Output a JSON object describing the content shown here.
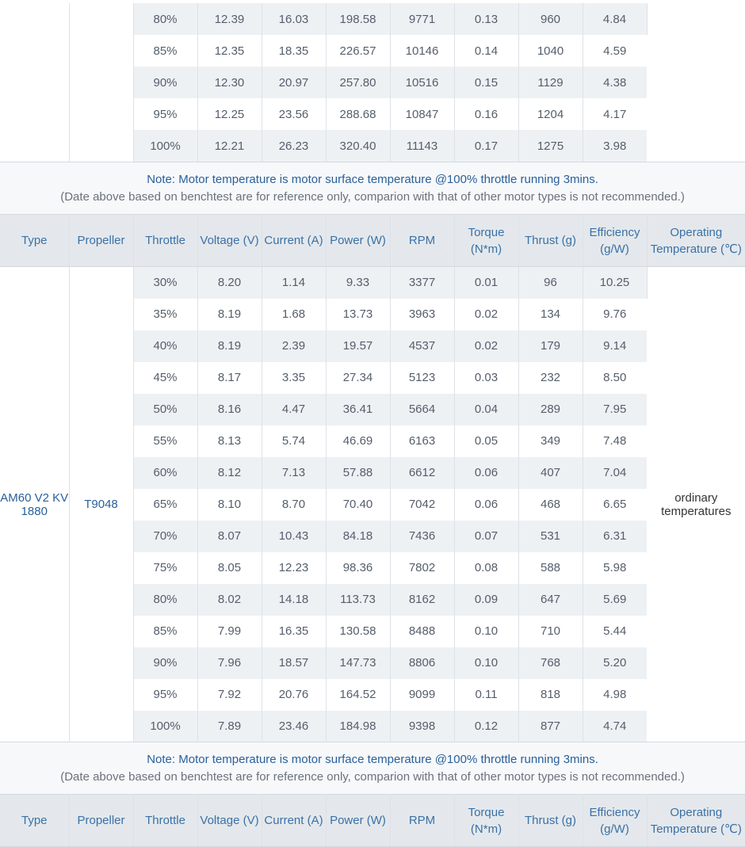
{
  "headers": [
    "Type",
    "Propeller",
    "Throttle",
    "Voltage (V)",
    "Current (A)",
    "Power (W)",
    "RPM",
    "Torque (N*m)",
    "Thrust (g)",
    "Efficiency (g/W)",
    "Operating Temperature (℃)"
  ],
  "note": {
    "main": "Note: Motor temperature is motor surface temperature @100% throttle running 3mins.",
    "sub": "(Date above based on benchtest are for reference only, comparion with that of other motor types is not recommended.)"
  },
  "top_rows": [
    [
      "80%",
      "12.39",
      "16.03",
      "198.58",
      "9771",
      "0.13",
      "960",
      "4.84"
    ],
    [
      "85%",
      "12.35",
      "18.35",
      "226.57",
      "10146",
      "0.14",
      "1040",
      "4.59"
    ],
    [
      "90%",
      "12.30",
      "20.97",
      "257.80",
      "10516",
      "0.15",
      "1129",
      "4.38"
    ],
    [
      "95%",
      "12.25",
      "23.56",
      "288.68",
      "10847",
      "0.16",
      "1204",
      "4.17"
    ],
    [
      "100%",
      "12.21",
      "26.23",
      "320.40",
      "11143",
      "0.17",
      "1275",
      "3.98"
    ]
  ],
  "motor": {
    "type": "AM60 V2 KV 1880",
    "propeller": "T9048",
    "temperature": "ordinary temperatures",
    "rows": [
      [
        "30%",
        "8.20",
        "1.14",
        "9.33",
        "3377",
        "0.01",
        "96",
        "10.25"
      ],
      [
        "35%",
        "8.19",
        "1.68",
        "13.73",
        "3963",
        "0.02",
        "134",
        "9.76"
      ],
      [
        "40%",
        "8.19",
        "2.39",
        "19.57",
        "4537",
        "0.02",
        "179",
        "9.14"
      ],
      [
        "45%",
        "8.17",
        "3.35",
        "27.34",
        "5123",
        "0.03",
        "232",
        "8.50"
      ],
      [
        "50%",
        "8.16",
        "4.47",
        "36.41",
        "5664",
        "0.04",
        "289",
        "7.95"
      ],
      [
        "55%",
        "8.13",
        "5.74",
        "46.69",
        "6163",
        "0.05",
        "349",
        "7.48"
      ],
      [
        "60%",
        "8.12",
        "7.13",
        "57.88",
        "6612",
        "0.06",
        "407",
        "7.04"
      ],
      [
        "65%",
        "8.10",
        "8.70",
        "70.40",
        "7042",
        "0.06",
        "468",
        "6.65"
      ],
      [
        "70%",
        "8.07",
        "10.43",
        "84.18",
        "7436",
        "0.07",
        "531",
        "6.31"
      ],
      [
        "75%",
        "8.05",
        "12.23",
        "98.36",
        "7802",
        "0.08",
        "588",
        "5.98"
      ],
      [
        "80%",
        "8.02",
        "14.18",
        "113.73",
        "8162",
        "0.09",
        "647",
        "5.69"
      ],
      [
        "85%",
        "7.99",
        "16.35",
        "130.58",
        "8488",
        "0.10",
        "710",
        "5.44"
      ],
      [
        "90%",
        "7.96",
        "18.57",
        "147.73",
        "8806",
        "0.10",
        "768",
        "5.20"
      ],
      [
        "95%",
        "7.92",
        "20.76",
        "164.52",
        "9099",
        "0.11",
        "818",
        "4.98"
      ],
      [
        "100%",
        "7.89",
        "23.46",
        "184.98",
        "9398",
        "0.12",
        "877",
        "4.74"
      ]
    ]
  }
}
